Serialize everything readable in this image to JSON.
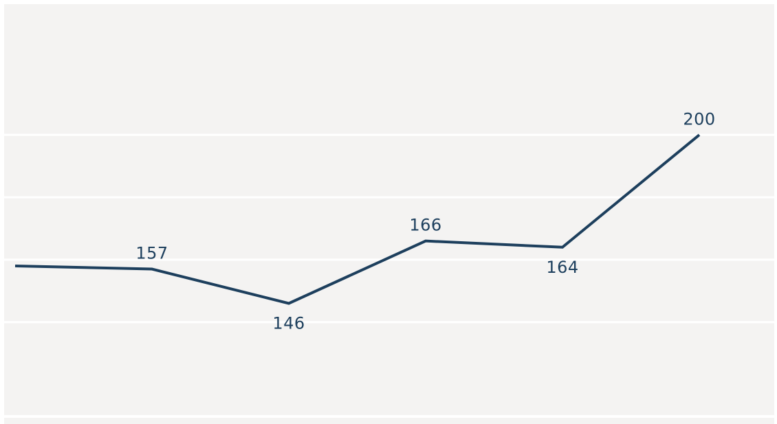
{
  "chart_data": {
    "type": "line",
    "title": "",
    "xlabel": "",
    "ylabel": "",
    "x": [
      1,
      2,
      3,
      4,
      5,
      6
    ],
    "series": [
      {
        "values": [
          158,
          157,
          146,
          166,
          164,
          200
        ],
        "data_labels": [
          "",
          "157",
          "146",
          "166",
          "164",
          "200"
        ]
      }
    ],
    "ylim": [
      110,
      230
    ],
    "gridlines": [
      140,
      160,
      180,
      200
    ],
    "grid": true,
    "legend": "none"
  },
  "colors": {
    "background": "#f4f3f2",
    "line": "#1d3f5d",
    "grid": "#ffffff",
    "label": "#1d3f5d"
  }
}
